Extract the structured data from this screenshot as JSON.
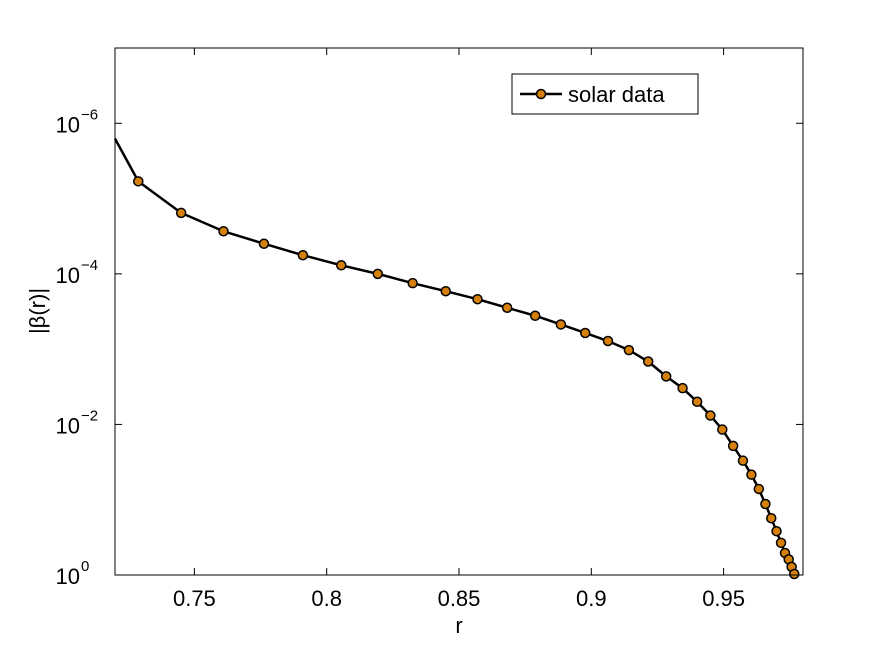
{
  "chart_data": {
    "type": "line",
    "xlabel": "r",
    "ylabel": "|β(r)|",
    "xlim": [
      0.72,
      0.98
    ],
    "ylim": [
      1e-07,
      1
    ],
    "y_scale": "log",
    "y_reversed": true,
    "grid": false,
    "legend_position": "top-right",
    "x_ticks": [
      {
        "value": 0.75,
        "label": "0.75"
      },
      {
        "value": 0.8,
        "label": "0.8"
      },
      {
        "value": 0.85,
        "label": "0.85"
      },
      {
        "value": 0.9,
        "label": "0.9"
      },
      {
        "value": 0.95,
        "label": "0.95"
      }
    ],
    "y_ticks": [
      {
        "value": 1e-06,
        "base": "10",
        "exp": "−6"
      },
      {
        "value": 0.0001,
        "base": "10",
        "exp": "−4"
      },
      {
        "value": 0.01,
        "base": "10",
        "exp": "−2"
      },
      {
        "value": 1,
        "base": "10",
        "exp": "0"
      }
    ],
    "series": [
      {
        "name": "solar data",
        "line_color": "#000000",
        "marker_fill": "#d4800a",
        "marker_edge": "#000000",
        "line_start": {
          "x": 0.72,
          "y": 1.6e-06
        },
        "x": [
          0.7288,
          0.745,
          0.761,
          0.7763,
          0.791,
          0.8055,
          0.8193,
          0.8325,
          0.845,
          0.857,
          0.8682,
          0.8788,
          0.8885,
          0.8977,
          0.9063,
          0.9142,
          0.9215,
          0.9283,
          0.9345,
          0.94,
          0.945,
          0.9495,
          0.9536,
          0.9573,
          0.9605,
          0.9633,
          0.9658,
          0.968,
          0.97,
          0.9717,
          0.9732,
          0.9746,
          0.9757,
          0.9767
        ],
        "y": [
          5.9e-06,
          1.55e-05,
          2.72e-05,
          3.98e-05,
          5.65e-05,
          7.7e-05,
          0.0001,
          0.000133,
          0.00017,
          0.000217,
          0.000282,
          0.00036,
          0.00047,
          0.00061,
          0.00078,
          0.00103,
          0.00146,
          0.0023,
          0.0033,
          0.005,
          0.0076,
          0.0117,
          0.0193,
          0.0303,
          0.0465,
          0.072,
          0.114,
          0.176,
          0.262,
          0.374,
          0.51,
          0.62,
          0.78,
          0.97
        ]
      }
    ]
  }
}
